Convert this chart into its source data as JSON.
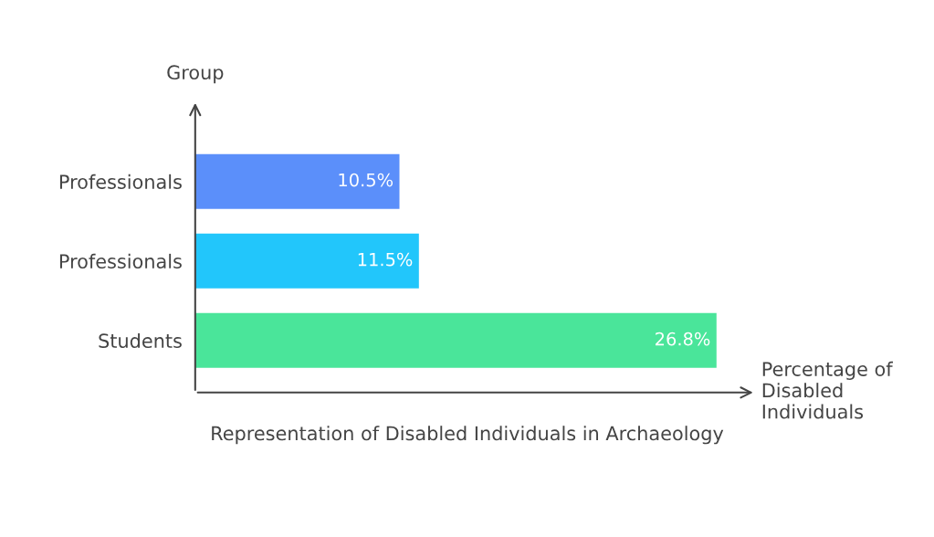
{
  "chart_data": {
    "type": "bar",
    "orientation": "horizontal",
    "title": "Representation of Disabled Individuals in Archaeology",
    "xlabel": "Percentage of Disabled Individuals",
    "ylabel": "Group",
    "categories": [
      "Professionals",
      "Professionals",
      "Students"
    ],
    "values": [
      10.5,
      11.5,
      26.8
    ],
    "colors": [
      "#5b8ffa",
      "#22c6fb",
      "#4ae59a"
    ],
    "value_labels": [
      "10.5%",
      "11.5%",
      "26.8%"
    ],
    "tick_labels": "y",
    "grid": false,
    "legend": false
  }
}
